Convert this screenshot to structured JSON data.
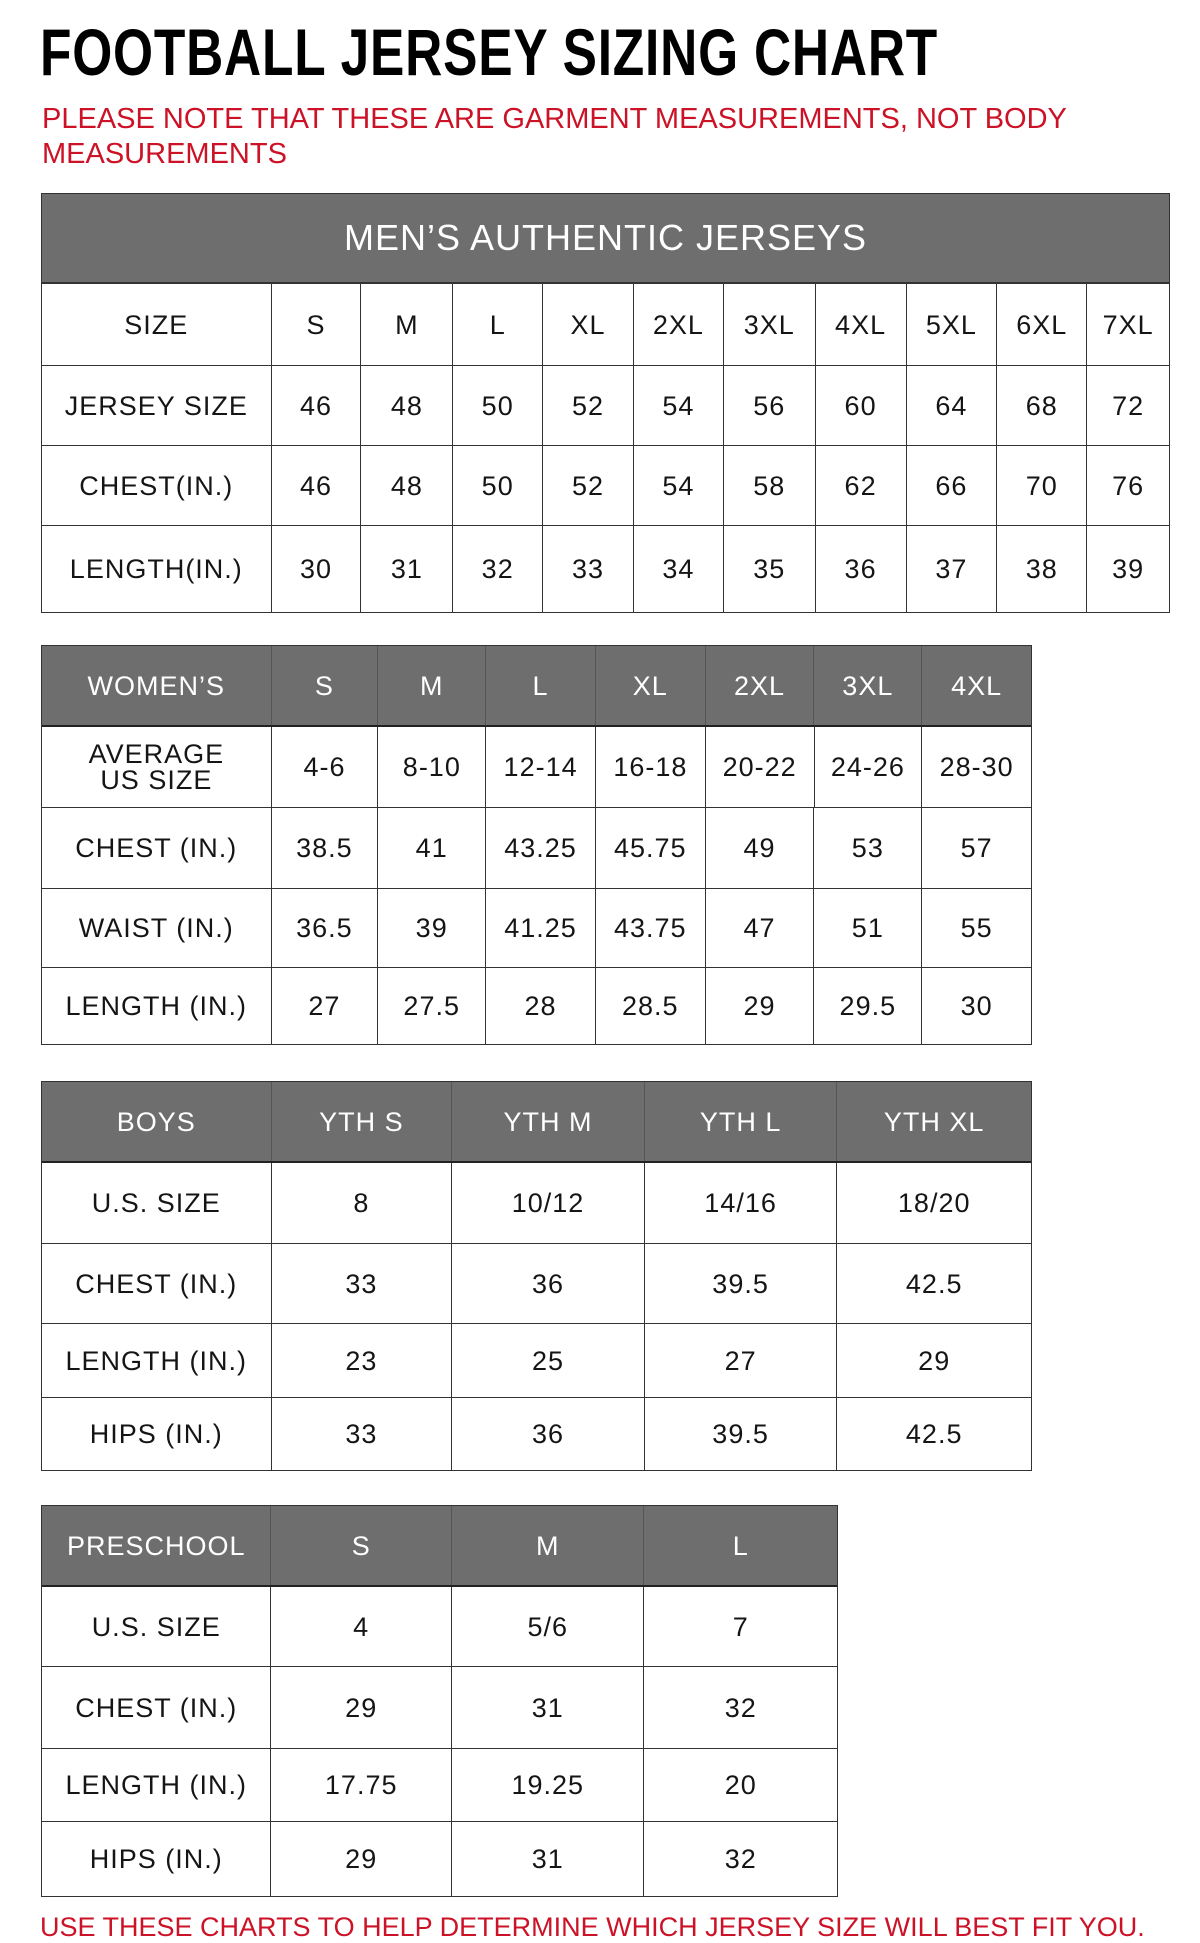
{
  "title": "FOOTBALL JERSEY SIZING CHART",
  "note": "PLEASE NOTE THAT THESE ARE GARMENT MEASUREMENTS, NOT BODY MEASUREMENTS",
  "footer": "USE THESE CHARTS TO HELP DETERMINE WHICH JERSEY SIZE WILL BEST FIT YOU.",
  "colors": {
    "header_bg": "#6e6e6e",
    "accent_red": "#cc1226"
  },
  "tables": [
    {
      "banner": "MEN’S AUTHENTIC JERSEYS",
      "header": [
        "SIZE",
        "S",
        "M",
        "L",
        "XL",
        "2XL",
        "3XL",
        "4XL",
        "5XL",
        "6XL",
        "7XL"
      ],
      "header_style": "plain",
      "rows": [
        [
          "JERSEY SIZE",
          "46",
          "48",
          "50",
          "52",
          "54",
          "56",
          "60",
          "64",
          "68",
          "72"
        ],
        [
          "CHEST(IN.)",
          "46",
          "48",
          "50",
          "52",
          "54",
          "58",
          "62",
          "66",
          "70",
          "76"
        ],
        [
          "LENGTH(IN.)",
          "30",
          "31",
          "32",
          "33",
          "34",
          "35",
          "36",
          "37",
          "38",
          "39"
        ]
      ]
    },
    {
      "header": [
        "WOMEN’S",
        "S",
        "M",
        "L",
        "XL",
        "2XL",
        "3XL",
        "4XL"
      ],
      "header_style": "gray",
      "rows": [
        [
          "AVERAGE US SIZE",
          "4-6",
          "8-10",
          "12-14",
          "16-18",
          "20-22",
          "24-26",
          "28-30"
        ],
        [
          "CHEST (IN.)",
          "38.5",
          "41",
          "43.25",
          "45.75",
          "49",
          "53",
          "57"
        ],
        [
          "WAIST (IN.)",
          "36.5",
          "39",
          "41.25",
          "43.75",
          "47",
          "51",
          "55"
        ],
        [
          "LENGTH (IN.)",
          "27",
          "27.5",
          "28",
          "28.5",
          "29",
          "29.5",
          "30"
        ]
      ]
    },
    {
      "header": [
        "BOYS",
        "YTH S",
        "YTH M",
        "YTH L",
        "YTH XL"
      ],
      "header_style": "gray",
      "rows": [
        [
          "U.S. SIZE",
          "8",
          "10/12",
          "14/16",
          "18/20"
        ],
        [
          "CHEST (IN.)",
          "33",
          "36",
          "39.5",
          "42.5"
        ],
        [
          "LENGTH (IN.)",
          "23",
          "25",
          "27",
          "29"
        ],
        [
          "HIPS (IN.)",
          "33",
          "36",
          "39.5",
          "42.5"
        ]
      ]
    },
    {
      "header": [
        "PRESCHOOL",
        "S",
        "M",
        "L"
      ],
      "header_style": "gray",
      "rows": [
        [
          "U.S. SIZE",
          "4",
          "5/6",
          "7"
        ],
        [
          "CHEST (IN.)",
          "29",
          "31",
          "32"
        ],
        [
          "LENGTH (IN.)",
          "17.75",
          "19.25",
          "20"
        ],
        [
          "HIPS (IN.)",
          "29",
          "31",
          "32"
        ]
      ]
    }
  ]
}
